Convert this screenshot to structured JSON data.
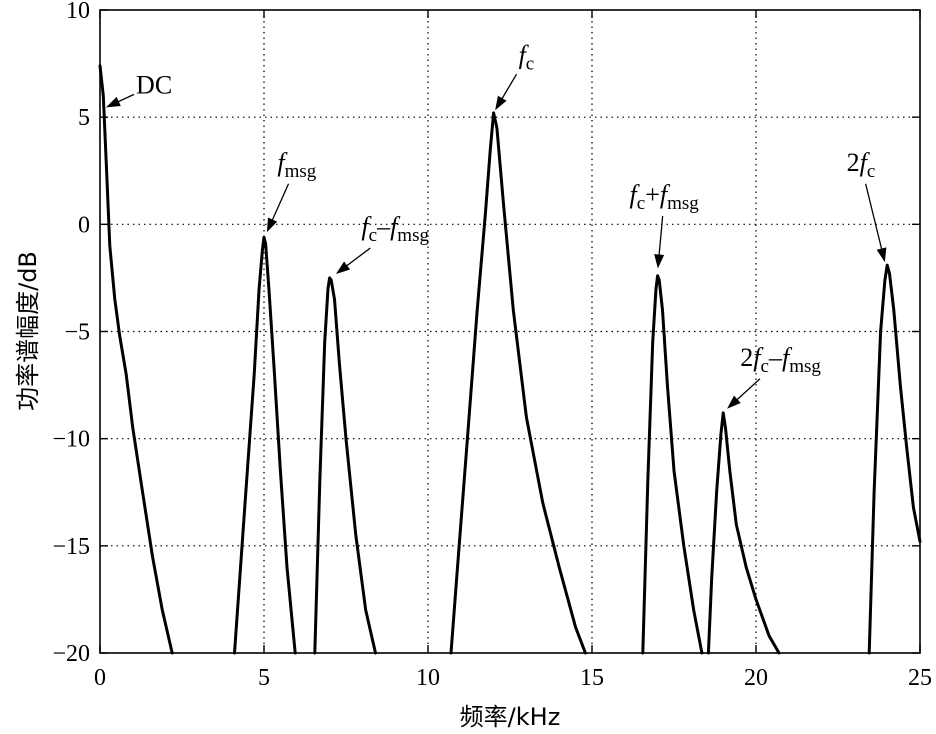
{
  "chart_data": {
    "type": "line",
    "xlabel": "频率/kHz",
    "ylabel": "功率谱幅度/dB",
    "xlim": [
      0,
      25
    ],
    "ylim": [
      -20,
      10
    ],
    "xticks": [
      0,
      5,
      10,
      15,
      20,
      25
    ],
    "yticks": [
      10,
      5,
      0,
      -5,
      -10,
      -15,
      -20
    ],
    "xtick_labels": [
      "0",
      "5",
      "10",
      "15",
      "20",
      "25"
    ],
    "ytick_labels": [
      "10",
      "5",
      "0",
      "−5",
      "−10",
      "−15",
      "−20"
    ],
    "grid": true,
    "series": [
      {
        "x": [
          0.0,
          0.1,
          0.2,
          0.3,
          0.45,
          0.6,
          0.8,
          1.0,
          1.3,
          1.6,
          1.9,
          2.2
        ],
        "y": [
          7.4,
          6.0,
          2.5,
          -1.0,
          -3.5,
          -5.2,
          -7.0,
          -9.5,
          -12.5,
          -15.5,
          -18.0,
          -20.0
        ]
      },
      {
        "x": [
          4.1,
          4.4,
          4.7,
          4.85,
          4.95,
          5.0,
          5.05,
          5.15,
          5.3,
          5.5,
          5.7,
          5.95
        ],
        "y": [
          -20.0,
          -13.5,
          -7.0,
          -3.0,
          -1.2,
          -0.6,
          -0.9,
          -3.0,
          -6.5,
          -11.5,
          -16.0,
          -20.0
        ]
      },
      {
        "x": [
          6.55,
          6.7,
          6.85,
          6.95,
          7.0,
          7.05,
          7.15,
          7.3,
          7.5,
          7.8,
          8.1,
          8.4
        ],
        "y": [
          -20.0,
          -12.0,
          -5.5,
          -3.0,
          -2.5,
          -2.6,
          -3.5,
          -6.5,
          -10.0,
          -14.5,
          -18.0,
          -20.0
        ]
      },
      {
        "x": [
          10.7,
          10.9,
          11.2,
          11.5,
          11.75,
          11.9,
          12.0,
          12.1,
          12.3,
          12.6,
          13.0,
          13.5,
          14.0,
          14.5,
          14.8
        ],
        "y": [
          -20.0,
          -16.0,
          -10.0,
          -4.0,
          0.5,
          3.5,
          5.2,
          4.5,
          1.0,
          -4.0,
          -9.0,
          -13.0,
          -16.0,
          -18.8,
          -20.0
        ]
      },
      {
        "x": [
          16.55,
          16.7,
          16.85,
          16.95,
          17.0,
          17.05,
          17.15,
          17.3,
          17.5,
          17.8,
          18.1,
          18.35
        ],
        "y": [
          -20.0,
          -12.0,
          -5.5,
          -3.0,
          -2.4,
          -2.6,
          -4.0,
          -7.5,
          -11.5,
          -15.0,
          -18.0,
          -20.0
        ]
      },
      {
        "x": [
          18.55,
          18.65,
          18.8,
          18.93,
          19.0,
          19.07,
          19.2,
          19.4,
          19.7,
          20.0,
          20.4,
          20.7
        ],
        "y": [
          -20.0,
          -16.5,
          -12.5,
          -9.8,
          -8.8,
          -9.5,
          -11.5,
          -14.0,
          -16.0,
          -17.5,
          -19.2,
          -20.0
        ]
      },
      {
        "x": [
          23.45,
          23.6,
          23.8,
          23.93,
          24.0,
          24.07,
          24.2,
          24.4,
          24.6,
          24.8,
          25.0
        ],
        "y": [
          -20.0,
          -12.5,
          -5.0,
          -2.6,
          -1.9,
          -2.3,
          -4.0,
          -7.5,
          -10.5,
          -13.2,
          -14.8
        ]
      }
    ],
    "annotations": [
      {
        "main": "DC",
        "sub": "",
        "text_x": 1.65,
        "text_y": 6.1,
        "tip_x": 0.1,
        "tip_y": 5.4
      },
      {
        "main": "f",
        "sub": "msg",
        "text_x": 6.0,
        "text_y": 2.5,
        "tip_x": 5.05,
        "tip_y": -0.5
      },
      {
        "main": "f",
        "sub": "c",
        "mid": "–f",
        "sub2": "msg",
        "text_x": 9.0,
        "text_y": -0.5,
        "tip_x": 7.12,
        "tip_y": -2.4
      },
      {
        "main": "f",
        "sub": "c",
        "text_x": 13.0,
        "text_y": 7.5,
        "tip_x": 12.0,
        "tip_y": 5.2
      },
      {
        "main": "f",
        "sub": "c",
        "mid": "+f",
        "sub2": "msg",
        "text_x": 17.2,
        "text_y": 1.0,
        "tip_x": 17.0,
        "tip_y": -2.2
      },
      {
        "main": "2f",
        "sub": "c",
        "mid": "–f",
        "sub2": "msg",
        "text_x": 20.75,
        "text_y": -6.6,
        "tip_x": 19.05,
        "tip_y": -8.7
      },
      {
        "main": "2f",
        "sub": "c",
        "text_x": 23.2,
        "text_y": 2.5,
        "tip_x": 23.95,
        "tip_y": -1.9
      }
    ]
  }
}
